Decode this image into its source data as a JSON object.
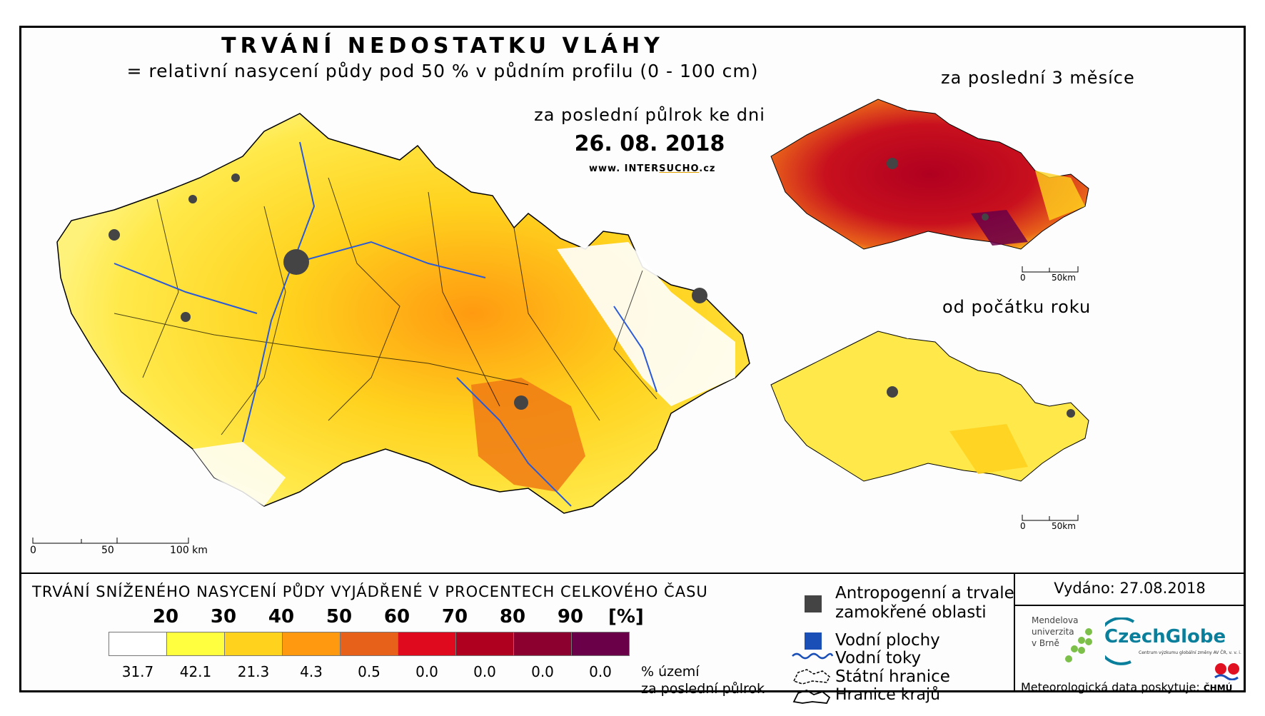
{
  "title": "TRVÁNÍ NEDOSTATKU VLÁHY",
  "subtitle": "= relativní nasycení půdy pod 50 % v půdním profilu (0 - 100 cm)",
  "main_map": {
    "period_label": "za poslední půlrok ke dni",
    "date": "26. 08. 2018",
    "website_prefix": "www. INTER",
    "website_highlight": "SUCHO",
    "website_suffix": ".cz",
    "scale": [
      "0",
      "50",
      "100 km"
    ]
  },
  "inset_3months": {
    "title": "za poslední 3 měsíce",
    "scale": [
      "0",
      "50km"
    ]
  },
  "inset_year": {
    "title": "od počátku roku",
    "scale": [
      "0",
      "50km"
    ]
  },
  "legend": {
    "title": "TRVÁNÍ SNÍŽENÉHO NASYCENÍ PŮDY VYJÁDŘENÉ V PROCENTECH CELKOVÉHO ČASU",
    "thresholds": [
      "20",
      "30",
      "40",
      "50",
      "60",
      "70",
      "80",
      "90"
    ],
    "unit": "[%]",
    "colors": [
      "#ffffff",
      "#ffff40",
      "#ffd21e",
      "#ff9a10",
      "#e8611a",
      "#e00a1e",
      "#b00020",
      "#8c0030",
      "#6a0048"
    ],
    "shares": [
      "31.7",
      "42.1",
      "21.3",
      "4.3",
      "0.5",
      "0.0",
      "0.0",
      "0.0",
      "0.0"
    ],
    "share_label_1": "% území",
    "share_label_2": "za poslední půlrok"
  },
  "key": {
    "urban_1": "Antropogenní a trvale",
    "urban_2": "zamokřené oblasti",
    "water_bodies": "Vodní plochy",
    "rivers": "Vodní toky",
    "borders": "Státní hranice",
    "regions": "Hranice krajů"
  },
  "footer": {
    "issued": "Vydáno: 27.08.2018",
    "mendel_1": "Mendelova",
    "mendel_2": "univerzita",
    "mendel_3": "v Brně",
    "czechglobe": "CzechGlobe",
    "czechglobe_sub": "Centrum výzkumu globální změny AV ČR, v. v. i.",
    "meteo_text": "Meteorologická data poskytuje:",
    "chmu": "ČHMÚ"
  }
}
